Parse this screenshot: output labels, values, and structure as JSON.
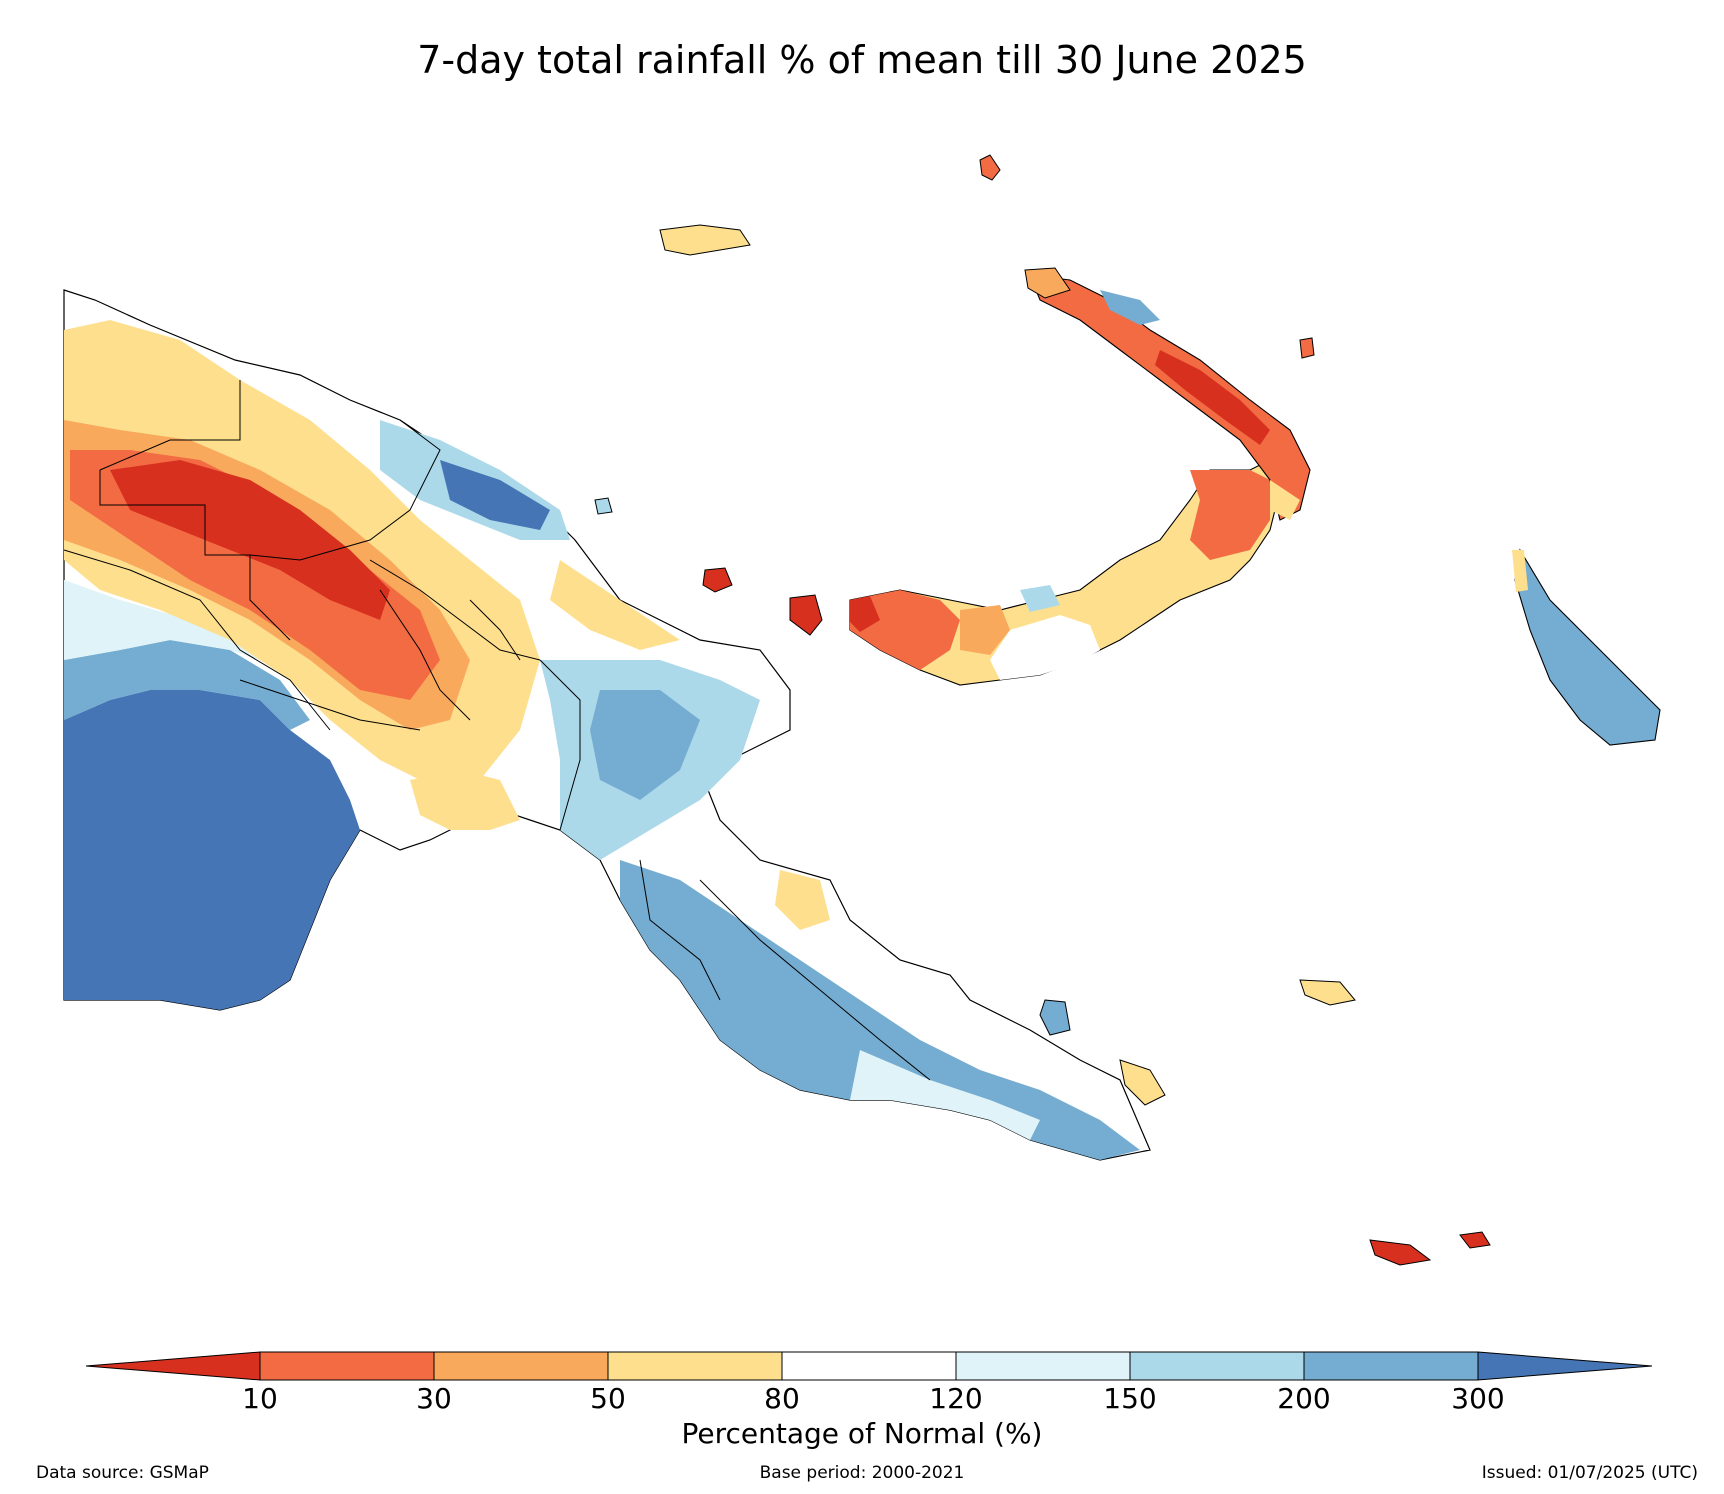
{
  "title": "7-day total rainfall % of mean till 30 June 2025",
  "colorbar": {
    "label": "Percentage of Normal (%)",
    "ticks": [
      "10",
      "30",
      "50",
      "80",
      "120",
      "150",
      "200",
      "300"
    ],
    "colors": {
      "under_10": "#d7301f",
      "c10_30": "#f26b43",
      "c30_50": "#f9a95c",
      "c50_80": "#fddf8e",
      "c80_120": "#ffffff",
      "c120_150": "#e0f3f8",
      "c150_200": "#abd9e9",
      "c200_300": "#74add1",
      "over_300": "#4575b4"
    }
  },
  "footer": {
    "source": "Data source: GSMaP",
    "base_period": "Base period: 2000-2021",
    "issued": "Issued: 01/07/2025 (UTC)"
  }
}
